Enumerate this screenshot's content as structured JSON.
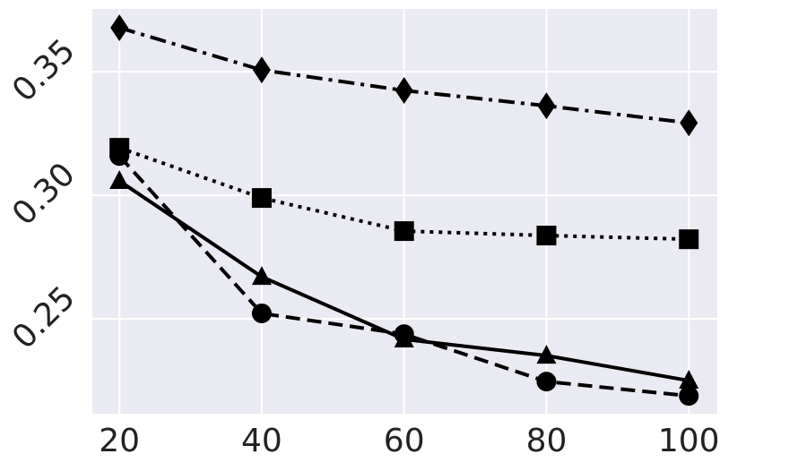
{
  "chart_data": {
    "type": "line",
    "x": [
      20,
      40,
      60,
      80,
      100
    ],
    "series": [
      {
        "color": "#000000",
        "marker": "diamond",
        "dash": "dashdot",
        "values": [
          0.3678,
          0.3507,
          0.3424,
          0.3362,
          0.3293
        ]
      },
      {
        "color": "#000000",
        "marker": "square",
        "dash": "dotted",
        "values": [
          0.3192,
          0.2989,
          0.2855,
          0.2837,
          0.2822
        ]
      },
      {
        "color": "#000000",
        "marker": "circle",
        "dash": "dashed",
        "values": [
          0.3159,
          0.2522,
          0.2438,
          0.2246,
          0.2188
        ]
      },
      {
        "color": "#000000",
        "marker": "triangle",
        "dash": "solid",
        "values": [
          0.3058,
          0.267,
          0.2417,
          0.2351,
          0.225
        ]
      }
    ],
    "xlim": [
      16.2,
      104.0
    ],
    "xticks": [
      20,
      40,
      60,
      80,
      100
    ],
    "ylim": [
      0.2116,
      0.3754
    ],
    "yticks": [
      0.25,
      {
        "value": 0.3,
        "label": "0.30"
      },
      0.35
    ],
    "grid": true
  }
}
